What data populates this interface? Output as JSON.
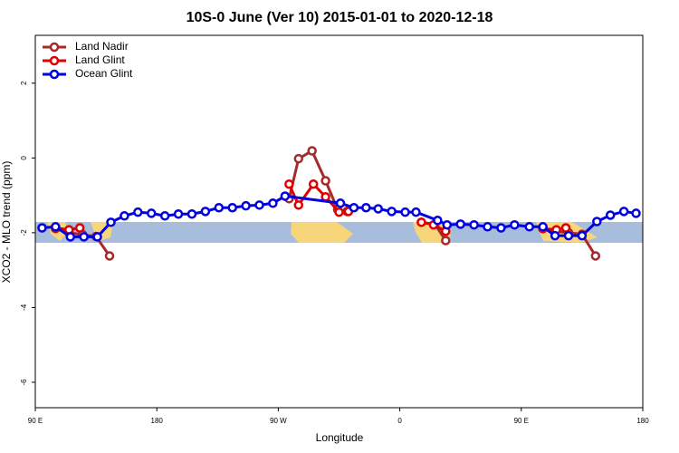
{
  "chart_data": {
    "type": "line",
    "title": "10S-0 June (Ver 10)   2015-01-01 to 2020-12-18",
    "x_label": "Longitude",
    "y_label": "XCO2 - MLO trend (ppm)",
    "xlim": [
      90,
      540
    ],
    "ylim": [
      -6.68,
      3.28
    ],
    "xticks": [
      {
        "value": 90,
        "label": "90 E"
      },
      180,
      {
        "value": 270,
        "label": "90 W"
      },
      {
        "value": 360,
        "label": "0"
      },
      {
        "value": 450,
        "label": "90 E"
      },
      {
        "value": 540,
        "label": "180"
      }
    ],
    "yticks": [
      -6,
      -4,
      -2,
      0,
      2
    ],
    "legend": "top-left",
    "series": [
      {
        "name": "Land Nadir",
        "color": "#a52a2a",
        "x": [
          105,
          115,
          125,
          135,
          145,
          null,
          278,
          285,
          295,
          305,
          314,
          321,
          null,
          376,
          386,
          394,
          null,
          466,
          475,
          485,
          495,
          505
        ],
        "values": [
          -1.89,
          -2.0,
          -2.05,
          -2.1,
          -2.62,
          null,
          -1.09,
          -0.02,
          0.19,
          -0.61,
          -1.38,
          -1.43,
          null,
          -1.72,
          -1.77,
          -2.21,
          null,
          -1.89,
          -1.96,
          -2.0,
          -2.04,
          -2.62
        ]
      },
      {
        "name": "Land Glint",
        "color": "#e00000",
        "x": [
          105,
          115,
          123,
          null,
          278,
          285,
          296,
          305,
          315,
          322,
          null,
          376,
          385,
          394,
          null,
          466,
          476,
          483
        ],
        "values": [
          -1.87,
          -1.92,
          -1.87,
          null,
          -0.7,
          -1.26,
          -0.7,
          -1.04,
          -1.45,
          -1.43,
          null,
          -1.72,
          -1.79,
          -1.96,
          null,
          -1.89,
          -1.92,
          -1.87
        ]
      },
      {
        "name": "Ocean Glint",
        "color": "#0000e0",
        "x": [
          95,
          105,
          116,
          126,
          136,
          146,
          156,
          166,
          176,
          186,
          196,
          206,
          216,
          226,
          236,
          246,
          256,
          266,
          275,
          316,
          326,
          335,
          344,
          354,
          364,
          372,
          388,
          395,
          405,
          415,
          425,
          435,
          445,
          456,
          466,
          475,
          485,
          495,
          506,
          516,
          526,
          535
        ],
        "values": [
          -1.87,
          -1.84,
          -2.11,
          -2.11,
          -2.11,
          -1.72,
          -1.55,
          -1.45,
          -1.48,
          -1.55,
          -1.5,
          -1.5,
          -1.43,
          -1.33,
          -1.33,
          -1.28,
          -1.26,
          -1.21,
          -1.02,
          -1.21,
          -1.33,
          -1.33,
          -1.36,
          -1.43,
          -1.45,
          -1.45,
          -1.67,
          -1.79,
          -1.77,
          -1.79,
          -1.84,
          -1.87,
          -1.79,
          -1.84,
          -1.84,
          -2.08,
          -2.08,
          -2.08,
          -1.7,
          -1.53,
          -1.43,
          -1.48
        ]
      }
    ]
  }
}
